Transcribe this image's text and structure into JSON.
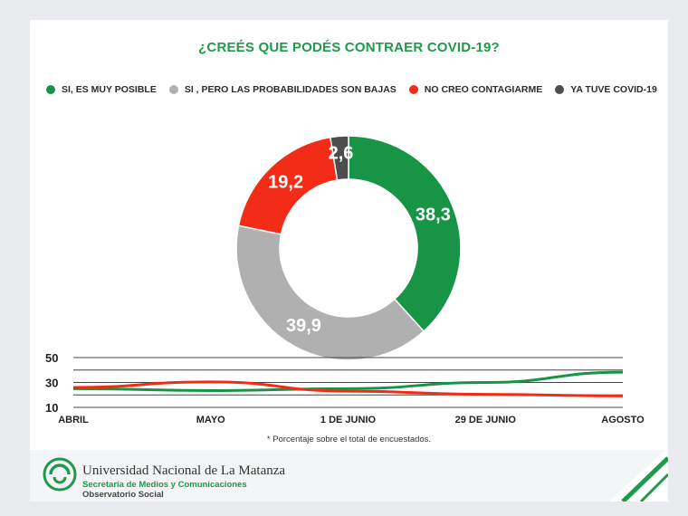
{
  "title": "¿CREÉS QUE PODÉS CONTRAER COVID-19?",
  "colors": {
    "green": "#189447",
    "gray": "#b0b0b0",
    "red": "#f22c16",
    "dark": "#4d4d4d",
    "title": "#1f9a4a"
  },
  "legend": [
    {
      "label": "SI, ES MUY POSIBLE",
      "color": "#189447"
    },
    {
      "label": "SI , PERO LAS PROBABILIDADES SON BAJAS",
      "color": "#b0b0b0"
    },
    {
      "label": "NO CREO CONTAGIARME",
      "color": "#f22c16"
    },
    {
      "label": "YA TUVE COVID-19",
      "color": "#4d4d4d"
    }
  ],
  "chart_data": [
    {
      "type": "pie",
      "donut": true,
      "title": "¿CREÉS QUE PODÉS CONTRAER COVID-19?",
      "slices": [
        {
          "label": "SI, ES MUY POSIBLE",
          "value": 38.3,
          "value_label": "38,3",
          "color": "#189447"
        },
        {
          "label": "SI , PERO LAS PROBABILIDADES SON BAJAS",
          "value": 39.9,
          "value_label": "39,9",
          "color": "#b0b0b0"
        },
        {
          "label": "NO CREO CONTAGIARME",
          "value": 19.2,
          "value_label": "19,2",
          "color": "#f22c16"
        },
        {
          "label": "YA TUVE COVID-19",
          "value": 2.6,
          "value_label": "2,6",
          "color": "#4d4d4d"
        }
      ],
      "legend_position": "top"
    },
    {
      "type": "line",
      "categories": [
        "ABRIL",
        "MAYO",
        "1 DE JUNIO",
        "29 DE JUNIO",
        "AGOSTO"
      ],
      "yticks": [
        "50",
        "30",
        "10"
      ],
      "ylim": [
        10,
        50
      ],
      "grid": true,
      "series": [
        {
          "color": "#189447",
          "values": [
            25,
            23.5,
            25,
            30,
            38.3
          ]
        },
        {
          "color": "#f22c16",
          "values": [
            26,
            30.5,
            23,
            20.5,
            19.2
          ]
        }
      ]
    }
  ],
  "footnote": "* Porcentaje sobre el total de encuestados.",
  "footer": {
    "org_name": "Universidad Nacional de La Matanza",
    "org_sub": "Secretaría de Medios y Comunicaciones",
    "org_sub2": "Observatorio Social"
  }
}
